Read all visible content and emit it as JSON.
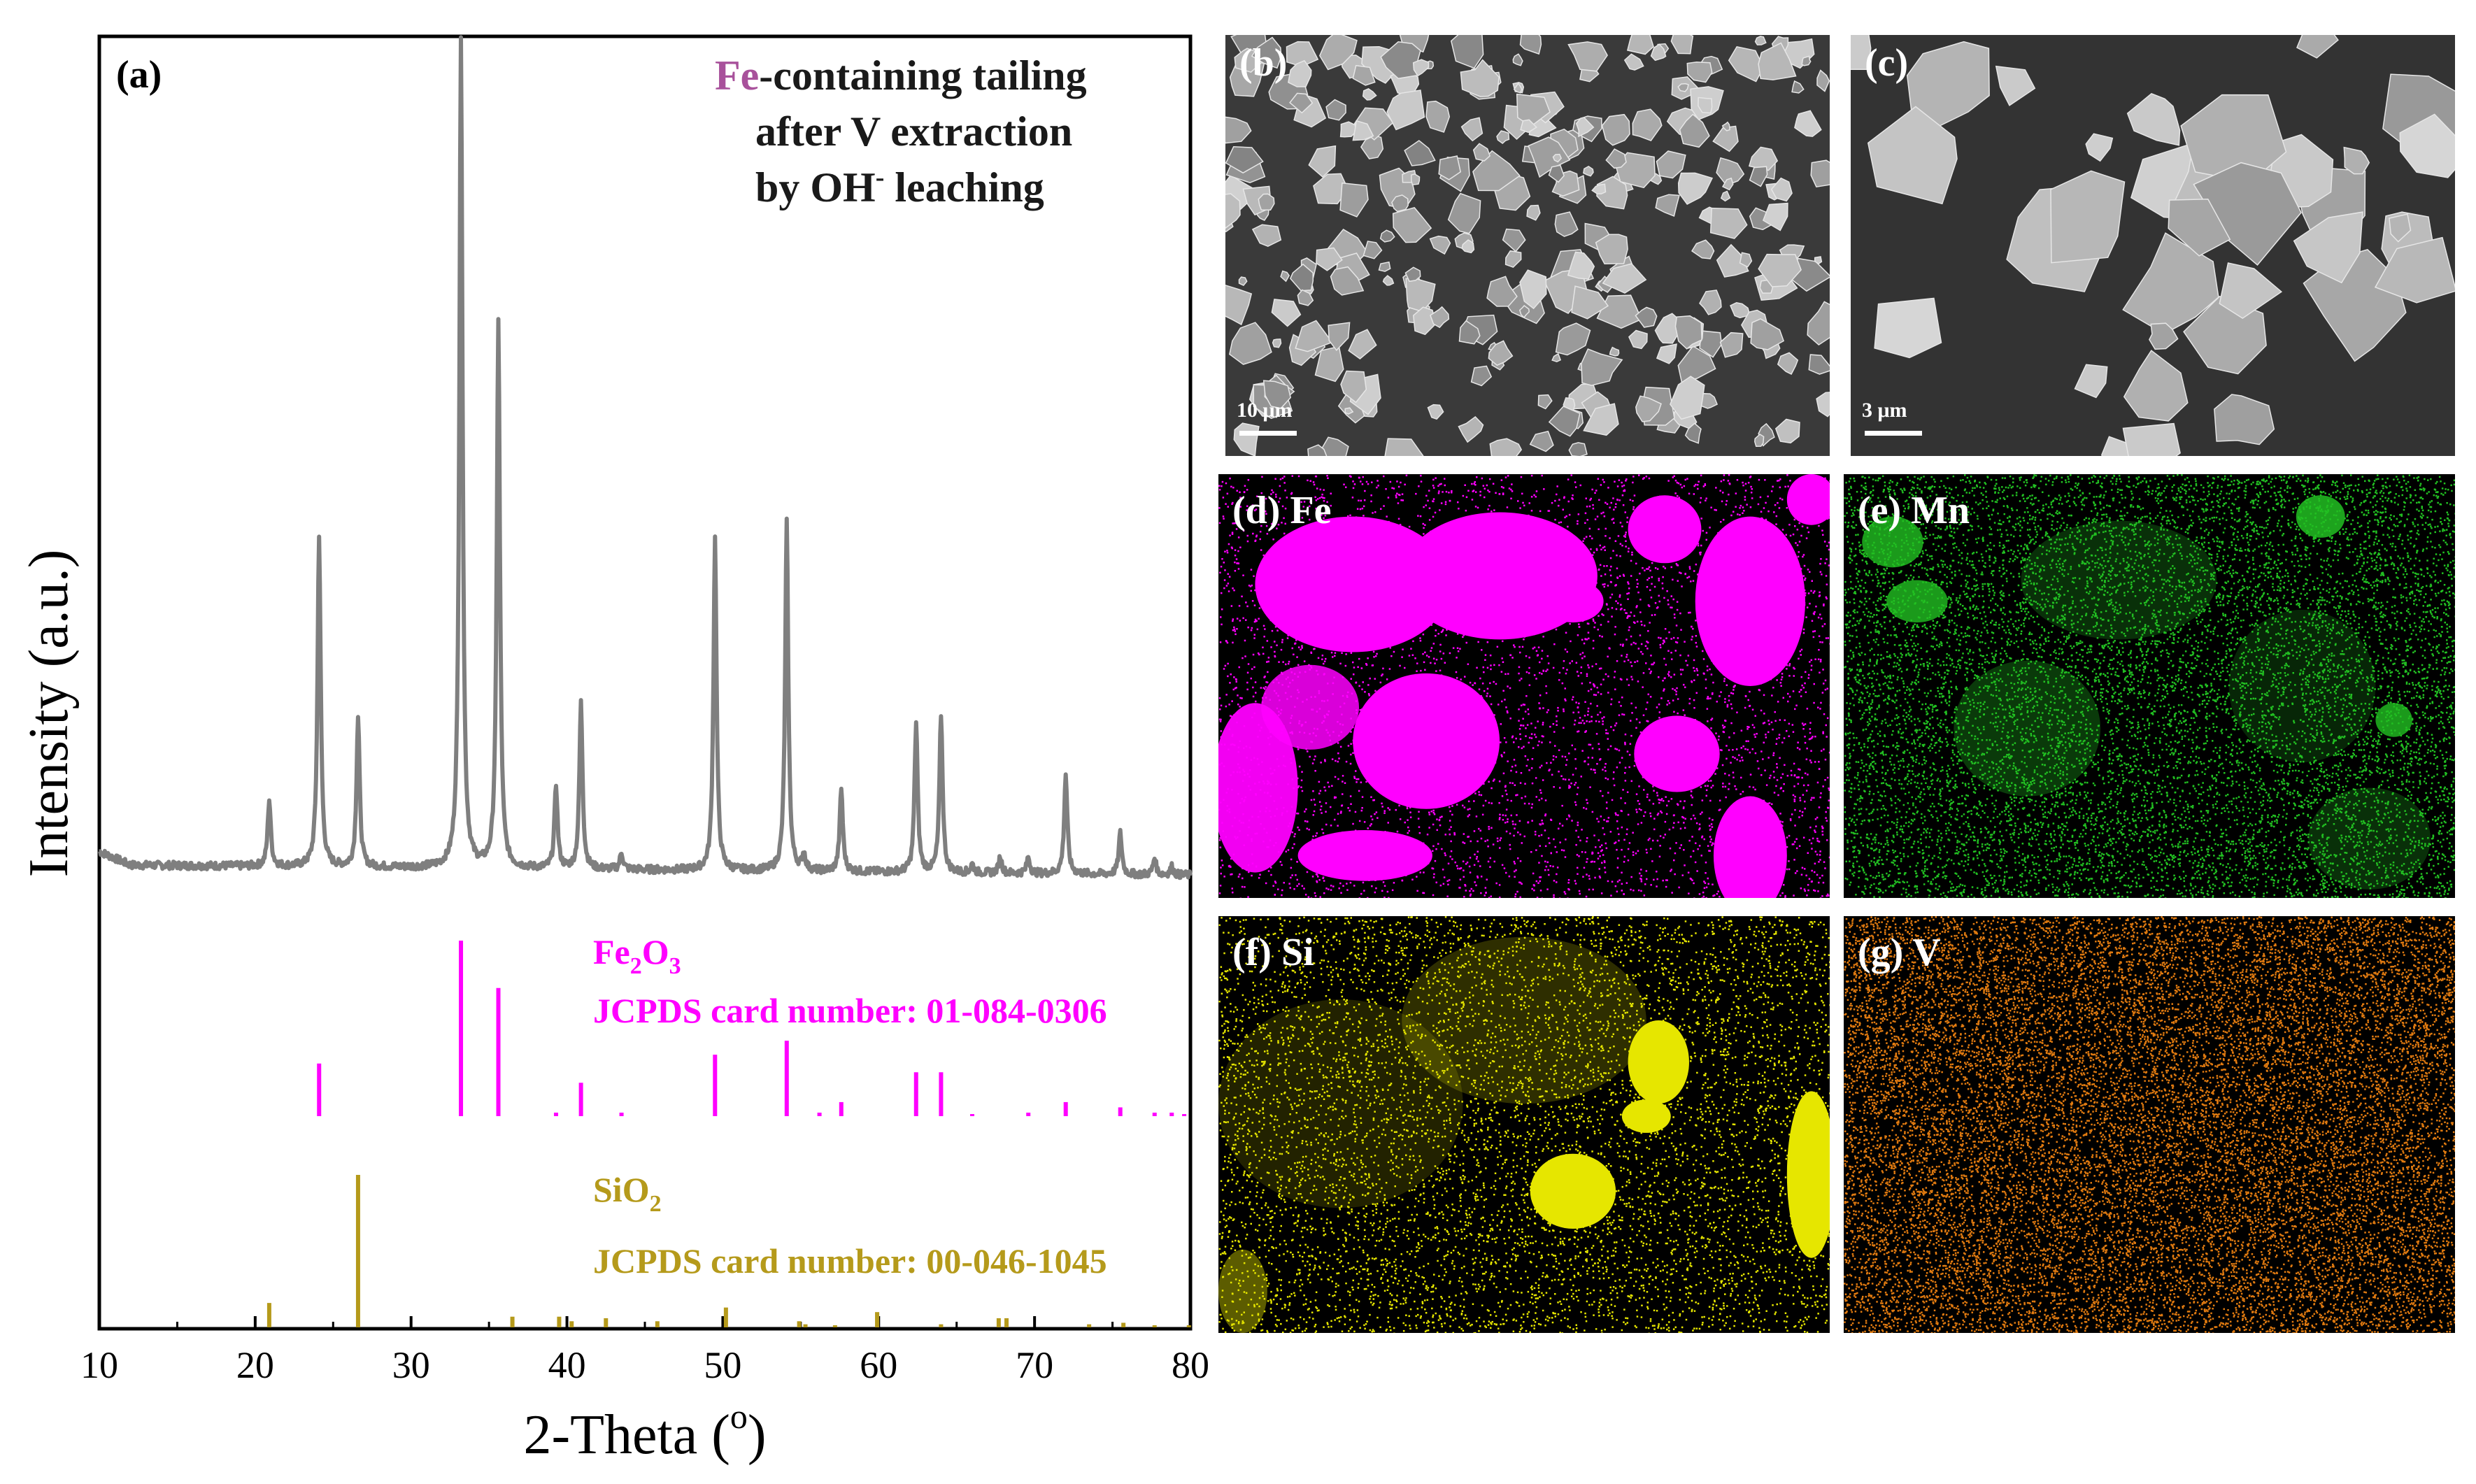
{
  "panel_a": {
    "label": "(a)",
    "annotation": {
      "highlight": "Fe",
      "line1_rest": "-containing tailing",
      "line2": "after V extraction",
      "line3_pre": "by OH",
      "line3_sup": "-",
      "line3_post": " leaching"
    },
    "ref1": {
      "formula_a": "Fe",
      "sub_a": "2",
      "formula_b": "O",
      "sub_b": "3",
      "card": "JCPDS card number: 01-084-0306",
      "color": "#ff00ff"
    },
    "ref2": {
      "formula_a": "SiO",
      "sub_a": "2",
      "card": "JCPDS card number: 00-046-1045",
      "color": "#b59a1b"
    },
    "annotation_color": "#1a1a1a",
    "highlight_color": "#a8519b"
  },
  "chart_data": {
    "type": "line",
    "title": "",
    "xlabel": "2-Theta (o)",
    "xlabel_main": "2-Theta (",
    "xlabel_sup": "o",
    "xlabel_end": ")",
    "ylabel": "Intensity (a.u.)",
    "xlim": [
      10,
      80
    ],
    "xticks": [
      10,
      20,
      30,
      40,
      50,
      60,
      70,
      80
    ],
    "series": [
      {
        "name": "Fe-containing tailing after V extraction by OH- leaching",
        "color": "#7f7f7f",
        "baseline": 5,
        "peaks": [
          {
            "x": 20.9,
            "y": 8
          },
          {
            "x": 24.1,
            "y": 40
          },
          {
            "x": 26.6,
            "y": 18
          },
          {
            "x": 33.2,
            "y": 100
          },
          {
            "x": 35.6,
            "y": 66
          },
          {
            "x": 39.3,
            "y": 10
          },
          {
            "x": 40.9,
            "y": 20
          },
          {
            "x": 43.5,
            "y": 2
          },
          {
            "x": 49.5,
            "y": 40
          },
          {
            "x": 54.1,
            "y": 42
          },
          {
            "x": 55.2,
            "y": 2
          },
          {
            "x": 57.6,
            "y": 10
          },
          {
            "x": 62.4,
            "y": 18
          },
          {
            "x": 64.0,
            "y": 19
          },
          {
            "x": 66.0,
            "y": 1
          },
          {
            "x": 67.8,
            "y": 2
          },
          {
            "x": 69.6,
            "y": 2
          },
          {
            "x": 72.0,
            "y": 12
          },
          {
            "x": 75.5,
            "y": 5
          },
          {
            "x": 77.7,
            "y": 2
          },
          {
            "x": 78.8,
            "y": 1
          }
        ]
      },
      {
        "name": "Fe2O3 JCPDS 01-084-0306",
        "color": "#ff00ff",
        "type": "stick",
        "sticks": [
          {
            "x": 24.1,
            "y": 30
          },
          {
            "x": 33.2,
            "y": 100
          },
          {
            "x": 35.6,
            "y": 73
          },
          {
            "x": 39.3,
            "y": 2
          },
          {
            "x": 40.9,
            "y": 19
          },
          {
            "x": 43.5,
            "y": 2
          },
          {
            "x": 49.5,
            "y": 35
          },
          {
            "x": 54.1,
            "y": 43
          },
          {
            "x": 56.2,
            "y": 2
          },
          {
            "x": 57.6,
            "y": 8
          },
          {
            "x": 62.4,
            "y": 25
          },
          {
            "x": 64.0,
            "y": 25
          },
          {
            "x": 66.0,
            "y": 1
          },
          {
            "x": 69.6,
            "y": 2
          },
          {
            "x": 72.0,
            "y": 8
          },
          {
            "x": 75.5,
            "y": 5
          },
          {
            "x": 77.7,
            "y": 2
          },
          {
            "x": 78.8,
            "y": 2
          },
          {
            "x": 79.6,
            "y": 1
          }
        ]
      },
      {
        "name": "SiO2 JCPDS 00-046-1045",
        "color": "#b59a1b",
        "type": "stick",
        "sticks": [
          {
            "x": 20.9,
            "y": 16
          },
          {
            "x": 26.6,
            "y": 100
          },
          {
            "x": 36.5,
            "y": 7
          },
          {
            "x": 39.5,
            "y": 7
          },
          {
            "x": 40.3,
            "y": 4
          },
          {
            "x": 42.5,
            "y": 6
          },
          {
            "x": 45.8,
            "y": 4
          },
          {
            "x": 50.2,
            "y": 13
          },
          {
            "x": 54.9,
            "y": 4
          },
          {
            "x": 55.3,
            "y": 2
          },
          {
            "x": 57.2,
            "y": 1
          },
          {
            "x": 59.9,
            "y": 10
          },
          {
            "x": 64.0,
            "y": 2
          },
          {
            "x": 67.7,
            "y": 6
          },
          {
            "x": 68.2,
            "y": 6
          },
          {
            "x": 73.5,
            "y": 2
          },
          {
            "x": 75.7,
            "y": 3
          },
          {
            "x": 77.7,
            "y": 1
          },
          {
            "x": 79.9,
            "y": 1
          }
        ]
      }
    ]
  },
  "panels": {
    "b": {
      "label": "(b)",
      "scale": "10 μm"
    },
    "c": {
      "label": "(c)",
      "scale": "3 μm"
    },
    "d": {
      "label": "(d) Fe",
      "color": "#ff00ff"
    },
    "e": {
      "label": "(e) Mn",
      "color": "#22c022"
    },
    "f": {
      "label": "(f) Si",
      "color": "#e6e600"
    },
    "g": {
      "label": "(g) V",
      "color": "#e07a10"
    }
  }
}
